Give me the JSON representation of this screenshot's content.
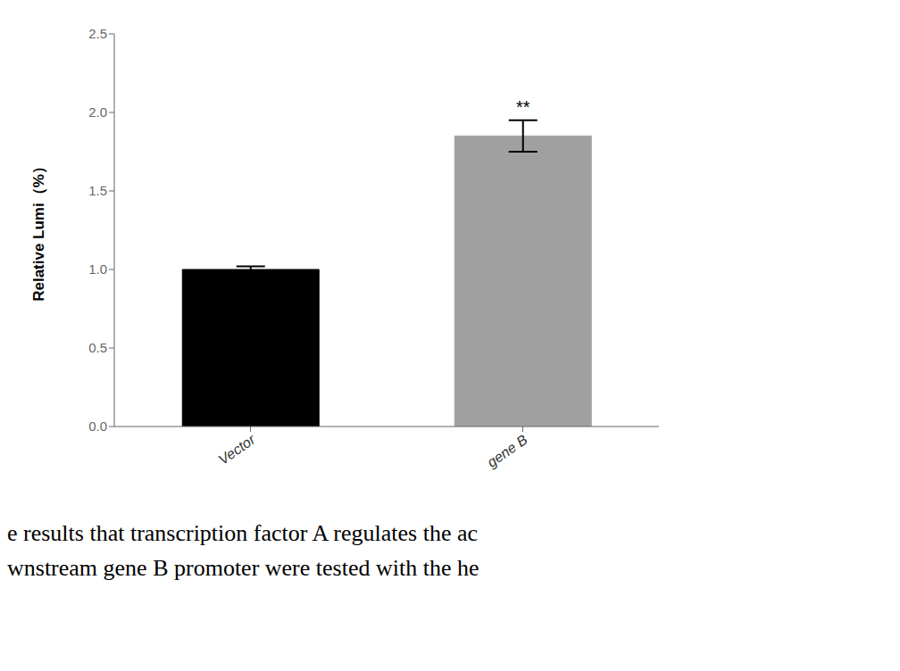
{
  "chart_data": {
    "type": "bar",
    "categories": [
      "Vector",
      "gene B"
    ],
    "values": [
      1.0,
      1.85
    ],
    "errors": [
      0.02,
      0.1
    ],
    "colors": [
      "#000000",
      "#a0a0a0"
    ],
    "ylabel": "Relative Lumi（%）",
    "ylim": [
      0,
      2.5
    ],
    "yticks": [
      {
        "value": 0,
        "label": "0.0"
      },
      0.5,
      {
        "value": 1,
        "label": "1.0"
      },
      1.5,
      {
        "value": 2,
        "label": "2.0"
      },
      2.5
    ],
    "annotations": [
      {
        "category": "gene B",
        "text": "**"
      },
      {
        "text": "e results that transcription factor A regulates the ac"
      },
      {
        "text": "wnstream gene B promoter were tested with the he"
      }
    ],
    "grid": false
  }
}
